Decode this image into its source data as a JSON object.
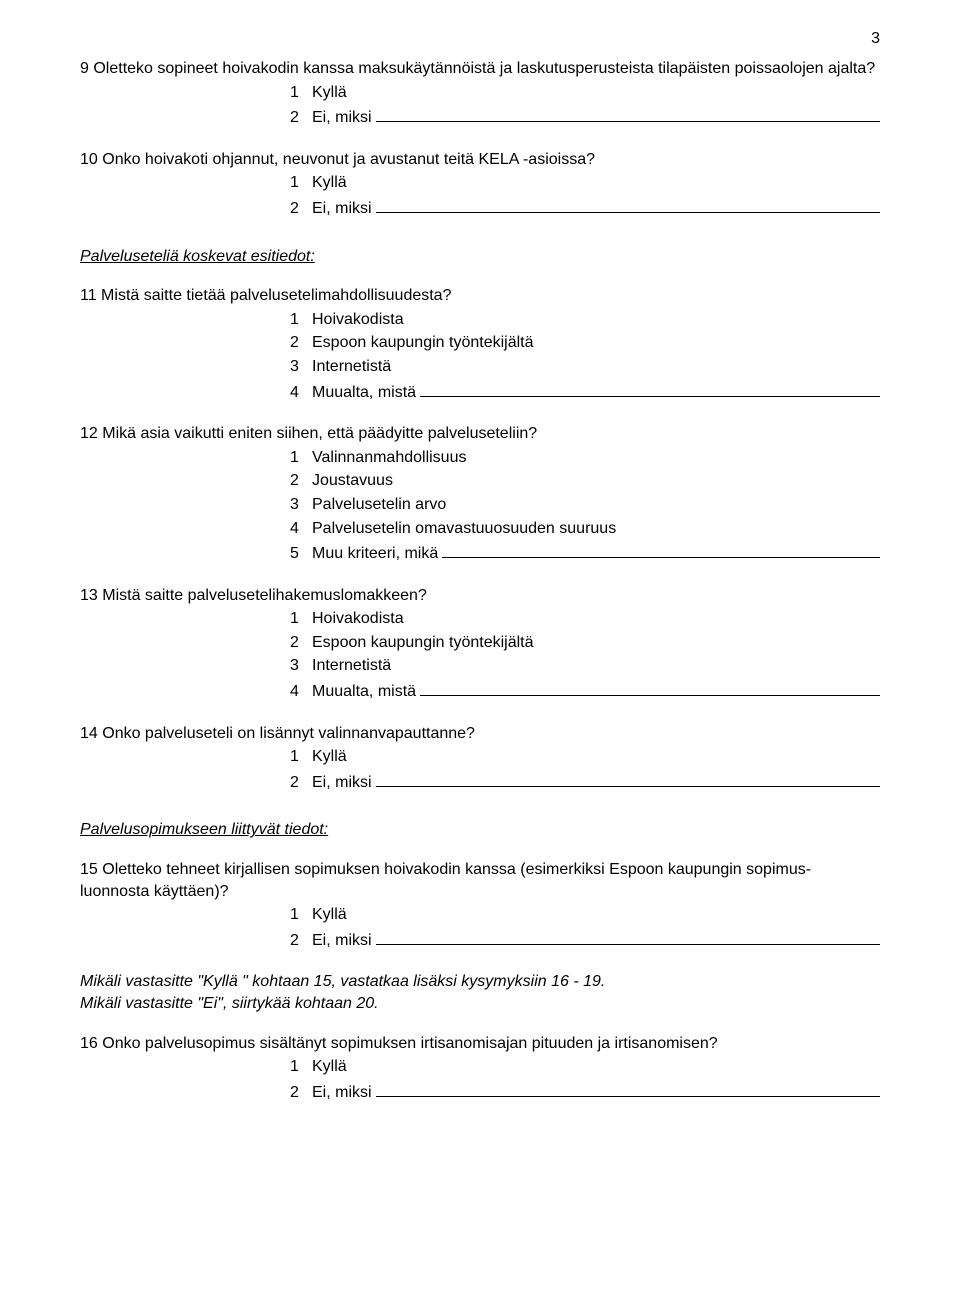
{
  "page_number": "3",
  "q9": {
    "text": "9 Oletteko sopineet hoivakodin kanssa maksukäytännöistä ja laskutusperusteista tilapäisten poissaolojen ajalta?",
    "options": [
      {
        "num": "1",
        "label": "Kyllä"
      },
      {
        "num": "2",
        "label": "Ei, miksi",
        "line": true
      }
    ]
  },
  "q10": {
    "text": "10 Onko hoivakoti ohjannut, neuvonut ja avustanut teitä KELA -asioissa?",
    "options": [
      {
        "num": "1",
        "label": "Kyllä"
      },
      {
        "num": "2",
        "label": "Ei, miksi",
        "line": true
      }
    ]
  },
  "section1": "Palveluseteliä koskevat esitiedot:",
  "q11": {
    "text": "11 Mistä saitte tietää palvelusetelimahdollisuudesta?",
    "options": [
      {
        "num": "1",
        "label": "Hoivakodista"
      },
      {
        "num": "2",
        "label": "Espoon kaupungin työntekijältä"
      },
      {
        "num": "3",
        "label": "Internetistä"
      },
      {
        "num": "4",
        "label": "Muualta, mistä",
        "line": true
      }
    ]
  },
  "q12": {
    "text": "12 Mikä asia vaikutti eniten siihen, että päädyitte palveluseteliin?",
    "options": [
      {
        "num": "1",
        "label": "Valinnanmahdollisuus"
      },
      {
        "num": "2",
        "label": "Joustavuus"
      },
      {
        "num": "3",
        "label": "Palvelusetelin arvo"
      },
      {
        "num": "4",
        "label": "Palvelusetelin omavastuuosuuden suuruus"
      },
      {
        "num": "5",
        "label": "Muu kriteeri, mikä",
        "line": true
      }
    ]
  },
  "q13": {
    "text": "13 Mistä saitte palvelusetelihakemuslomakkeen?",
    "options": [
      {
        "num": "1",
        "label": "Hoivakodista"
      },
      {
        "num": "2",
        "label": "Espoon kaupungin työntekijältä"
      },
      {
        "num": "3",
        "label": "Internetistä"
      },
      {
        "num": "4",
        "label": "Muualta, mistä",
        "line": true
      }
    ]
  },
  "q14": {
    "text": "14 Onko palveluseteli on lisännyt valinnanvapauttanne?",
    "options": [
      {
        "num": "1",
        "label": "Kyllä"
      },
      {
        "num": "2",
        "label": "Ei, miksi",
        "line": true
      }
    ]
  },
  "section2": "Palvelusopimukseen liittyvät tiedot:",
  "q15": {
    "text": "15 Oletteko tehneet kirjallisen sopimuksen hoivakodin kanssa (esimerkiksi Espoon kaupungin sopimus-luonnosta käyttäen)?",
    "options": [
      {
        "num": "1",
        "label": "Kyllä"
      },
      {
        "num": "2",
        "label": "Ei, miksi",
        "line": true
      }
    ]
  },
  "instruction1": "Mikäli vastasitte \"Kyllä \" kohtaan 15, vastatkaa lisäksi kysymyksiin 16 - 19.",
  "instruction2": "Mikäli vastasitte \"Ei\", siirtykää kohtaan 20.",
  "q16": {
    "text": "16 Onko palvelusopimus sisältänyt sopimuksen irtisanomisajan pituuden ja irtisanomisen?",
    "options": [
      {
        "num": "1",
        "label": "Kyllä"
      },
      {
        "num": "2",
        "label": "Ei, miksi",
        "line": true
      }
    ]
  }
}
